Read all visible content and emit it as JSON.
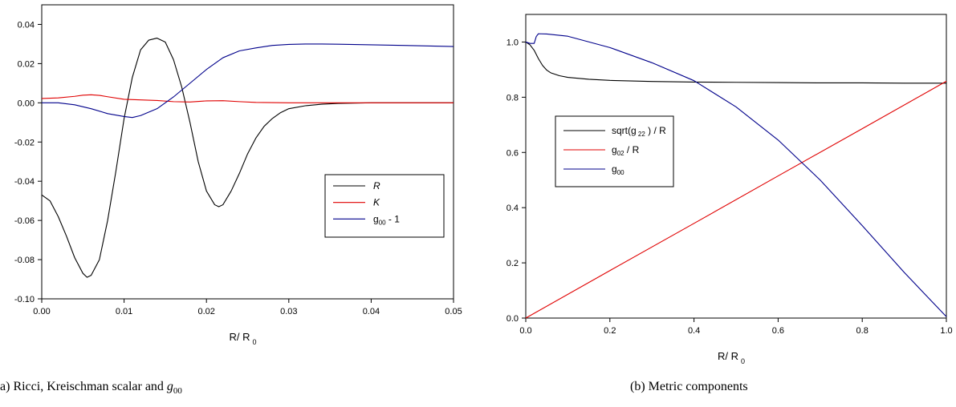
{
  "captions": {
    "left_prefix": "a)",
    "left_text": "Ricci, Kreischman scalar and",
    "left_math": "g",
    "left_math_sub": "00",
    "right_text": "(b) Metric components"
  },
  "chart_data": [
    {
      "type": "line",
      "xlabel": "R/ R",
      "xlabel_sub": "0",
      "ylabel": "",
      "xlim": [
        0,
        0.05
      ],
      "ylim": [
        -0.1,
        0.05
      ],
      "x_ticks": [
        "0.00",
        "0.01",
        "0.02",
        "0.03",
        "0.04",
        "0.05"
      ],
      "y_ticks": [
        "-0.10",
        "-0.08",
        "-0.06",
        "-0.04",
        "-0.02",
        "0.00",
        "0.02",
        "0.04"
      ],
      "legend_position": "center-right",
      "series": [
        {
          "name": "R",
          "color": "#000000",
          "x": [
            0,
            0.001,
            0.002,
            0.003,
            0.004,
            0.005,
            0.0055,
            0.006,
            0.007,
            0.008,
            0.009,
            0.01,
            0.011,
            0.012,
            0.013,
            0.014,
            0.015,
            0.016,
            0.017,
            0.018,
            0.019,
            0.02,
            0.021,
            0.0215,
            0.022,
            0.023,
            0.024,
            0.025,
            0.026,
            0.027,
            0.028,
            0.029,
            0.03,
            0.032,
            0.034,
            0.036,
            0.04,
            0.045,
            0.05
          ],
          "y": [
            -0.047,
            -0.05,
            -0.058,
            -0.068,
            -0.079,
            -0.087,
            -0.089,
            -0.088,
            -0.08,
            -0.06,
            -0.035,
            -0.008,
            0.013,
            0.027,
            0.032,
            0.033,
            0.031,
            0.022,
            0.008,
            -0.01,
            -0.03,
            -0.045,
            -0.052,
            -0.053,
            -0.052,
            -0.045,
            -0.036,
            -0.026,
            -0.018,
            -0.012,
            -0.008,
            -0.005,
            -0.003,
            -0.0015,
            -0.0007,
            -0.0003,
            0.0,
            0.0,
            0.0
          ]
        },
        {
          "name": "K",
          "color": "#e00000",
          "x": [
            0,
            0.002,
            0.004,
            0.005,
            0.006,
            0.007,
            0.008,
            0.01,
            0.012,
            0.014,
            0.016,
            0.018,
            0.02,
            0.022,
            0.024,
            0.026,
            0.03,
            0.04,
            0.05
          ],
          "y": [
            0.0022,
            0.0025,
            0.0033,
            0.0039,
            0.0041,
            0.0038,
            0.0031,
            0.0018,
            0.0015,
            0.0012,
            0.0006,
            0.0004,
            0.001,
            0.0011,
            0.0006,
            0.0002,
            0.0,
            0.0,
            0.0
          ]
        },
        {
          "name": "g",
          "name_sub": "00",
          "name_suffix": " - 1",
          "color": "#00008b",
          "x": [
            0,
            0.002,
            0.004,
            0.006,
            0.008,
            0.01,
            0.011,
            0.012,
            0.014,
            0.016,
            0.018,
            0.02,
            0.022,
            0.024,
            0.026,
            0.028,
            0.03,
            0.032,
            0.034,
            0.036,
            0.04,
            0.045,
            0.05
          ],
          "y": [
            0.0,
            0.0,
            -0.001,
            -0.003,
            -0.0055,
            -0.007,
            -0.0075,
            -0.0065,
            -0.003,
            0.003,
            0.01,
            0.017,
            0.023,
            0.0265,
            0.028,
            0.0293,
            0.0298,
            0.03,
            0.03,
            0.0299,
            0.0296,
            0.0292,
            0.0287
          ]
        }
      ]
    },
    {
      "type": "line",
      "xlabel": "R/ R",
      "xlabel_sub": "0",
      "ylabel": "",
      "xlim": [
        0,
        1.0
      ],
      "ylim": [
        0,
        1.1
      ],
      "x_ticks": [
        "0.0",
        "0.2",
        "0.4",
        "0.6",
        "0.8",
        "1.0"
      ],
      "y_ticks": [
        "0.0",
        "0.2",
        "0.4",
        "0.6",
        "0.8",
        "1.0"
      ],
      "legend_position": "center-left",
      "series": [
        {
          "name": "sqrt(g",
          "name_sub": "22",
          "name_suffix": " ) / R",
          "color": "#000000",
          "x": [
            0,
            0.01,
            0.02,
            0.03,
            0.04,
            0.05,
            0.06,
            0.08,
            0.1,
            0.15,
            0.2,
            0.3,
            0.4,
            0.5,
            0.6,
            0.7,
            0.8,
            0.9,
            1.0
          ],
          "y": [
            1.0,
            0.99,
            0.97,
            0.94,
            0.915,
            0.898,
            0.888,
            0.878,
            0.872,
            0.865,
            0.861,
            0.857,
            0.855,
            0.854,
            0.853,
            0.852,
            0.852,
            0.851,
            0.851
          ]
        },
        {
          "name": "g",
          "name_sub": "02",
          "name_suffix": "  / R",
          "color": "#e00000",
          "x": [
            0,
            0.2,
            0.4,
            0.6,
            0.8,
            1.0
          ],
          "y": [
            0.0,
            0.172,
            0.343,
            0.515,
            0.686,
            0.858
          ]
        },
        {
          "name": "g",
          "name_sub": "00",
          "name_suffix": "",
          "color": "#00008b",
          "x": [
            0,
            0.01,
            0.02,
            0.025,
            0.03,
            0.05,
            0.1,
            0.2,
            0.3,
            0.4,
            0.5,
            0.6,
            0.7,
            0.8,
            0.9,
            0.95,
            1.0
          ],
          "y": [
            1.0,
            0.995,
            0.995,
            1.02,
            1.03,
            1.029,
            1.021,
            0.98,
            0.925,
            0.86,
            0.765,
            0.645,
            0.5,
            0.335,
            0.165,
            0.085,
            0.005
          ]
        }
      ]
    }
  ]
}
